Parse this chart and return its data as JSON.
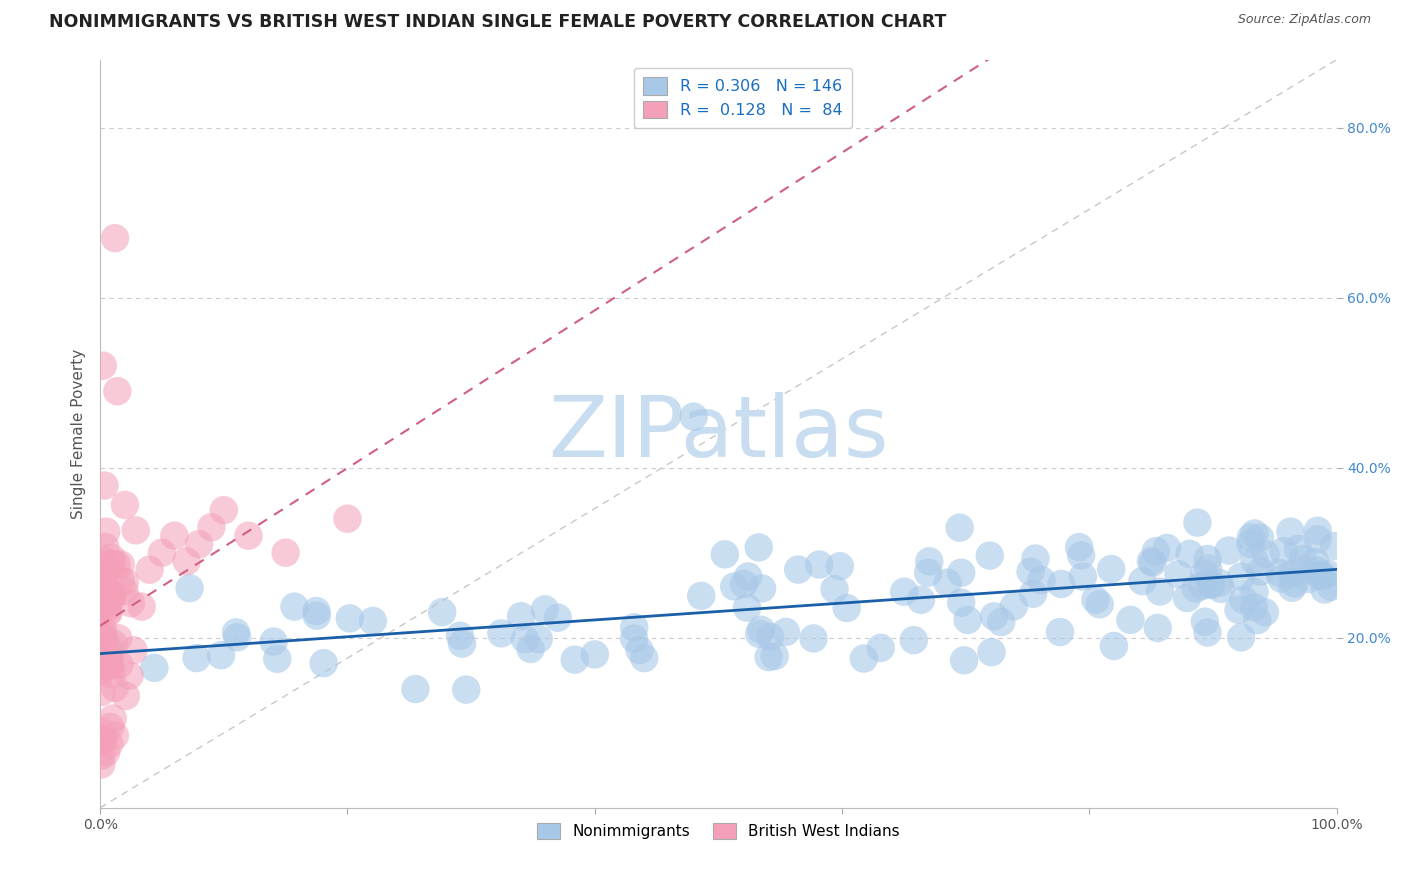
{
  "title": "NONIMMIGRANTS VS BRITISH WEST INDIAN SINGLE FEMALE POVERTY CORRELATION CHART",
  "source": "Source: ZipAtlas.com",
  "ylabel": "Single Female Poverty",
  "xlim": [
    0,
    1.0
  ],
  "ylim": [
    0.0,
    0.88
  ],
  "color_blue": "#a8c8e8",
  "color_pink": "#f4a0b8",
  "trendline_blue": "#1a5fa8",
  "trendline_pink": "#d06080",
  "grid_color": "#cccccc",
  "background": "#ffffff",
  "watermark_color": "#c8ddf0",
  "title_color": "#222222",
  "source_color": "#555555",
  "tick_color": "#4488cc",
  "legend_label_color": "#1a6ec0"
}
